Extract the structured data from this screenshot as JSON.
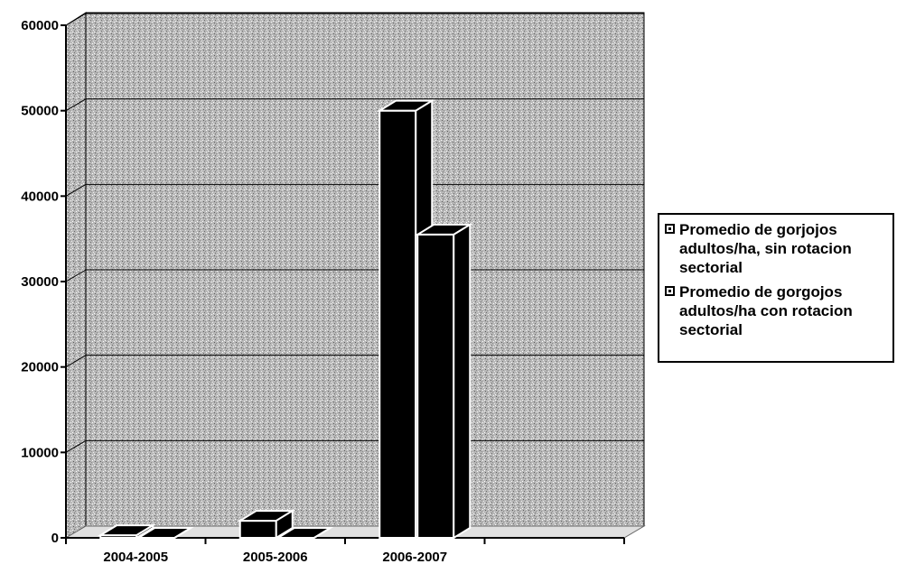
{
  "chart_data": {
    "type": "bar",
    "categories": [
      "2004-2005",
      "2005-2006",
      "2006-2007",
      ""
    ],
    "series": [
      {
        "name": "Promedio de gorjojos adultos/ha, sin rotacion sectorial",
        "values": [
          300,
          2000,
          50000,
          0
        ],
        "color": "#000000"
      },
      {
        "name": "Promedio de gorgojos adultos/ha con rotacion sectorial",
        "values": [
          0,
          0,
          35500,
          0
        ],
        "color": "#000000"
      }
    ],
    "ylim": [
      0,
      60000
    ],
    "yticks": [
      "0",
      "10000",
      "20000",
      "30000",
      "40000",
      "50000",
      "60000"
    ],
    "grid": true,
    "legend": "right",
    "background": "#b5b5b5"
  }
}
